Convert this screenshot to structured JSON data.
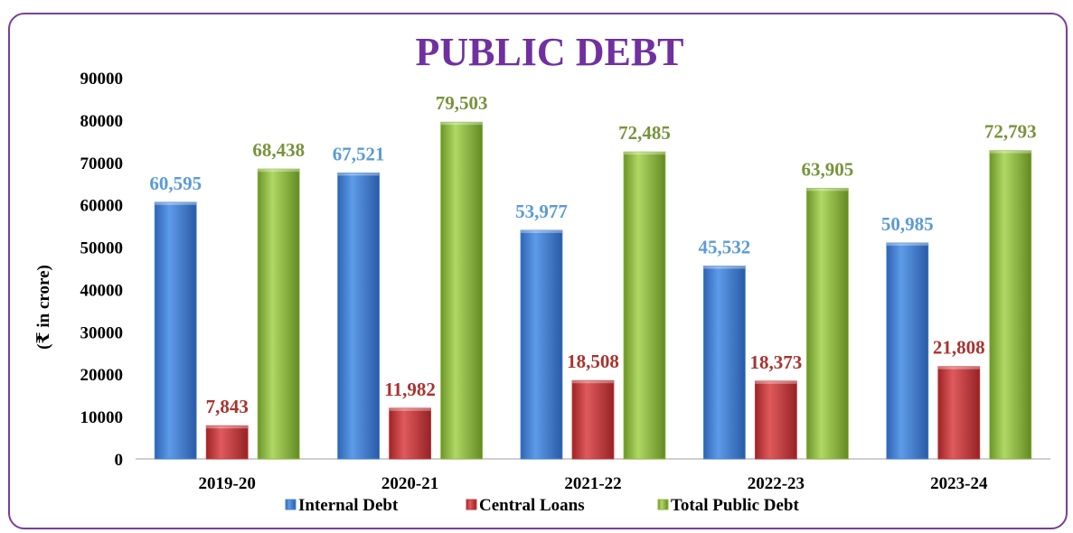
{
  "chart_data": {
    "type": "bar",
    "title": "PUBLIC DEBT",
    "ylabel": "(₹ in crore)",
    "xlabel": "",
    "ylim": [
      0,
      90000
    ],
    "yticks": [
      0,
      10000,
      20000,
      30000,
      40000,
      50000,
      60000,
      70000,
      80000,
      90000
    ],
    "categories": [
      "2019-20",
      "2020-21",
      "2021-22",
      "2022-23",
      "2023-24"
    ],
    "series": [
      {
        "name": "Internal Debt",
        "color": "#4a86d6",
        "label_color": "#5b9bd5",
        "values": [
          60595,
          67521,
          53977,
          45532,
          50985
        ],
        "labels": [
          "60,595",
          "67,521",
          "53,977",
          "45,532",
          "50,985"
        ]
      },
      {
        "name": "Central Loans",
        "color": "#c9373a",
        "label_color": "#a9332f",
        "values": [
          7843,
          11982,
          18508,
          18373,
          21808
        ],
        "labels": [
          "7,843",
          "11,982",
          "18,508",
          "18,373",
          "21,808"
        ]
      },
      {
        "name": "Total Public Debt",
        "color": "#8db83e",
        "label_color": "#77933c",
        "values": [
          68438,
          79503,
          72485,
          63905,
          72793
        ],
        "labels": [
          "68,438",
          "79,503",
          "72,485",
          "63,905",
          "72,793"
        ]
      }
    ],
    "legend_position": "bottom",
    "grid": false
  }
}
